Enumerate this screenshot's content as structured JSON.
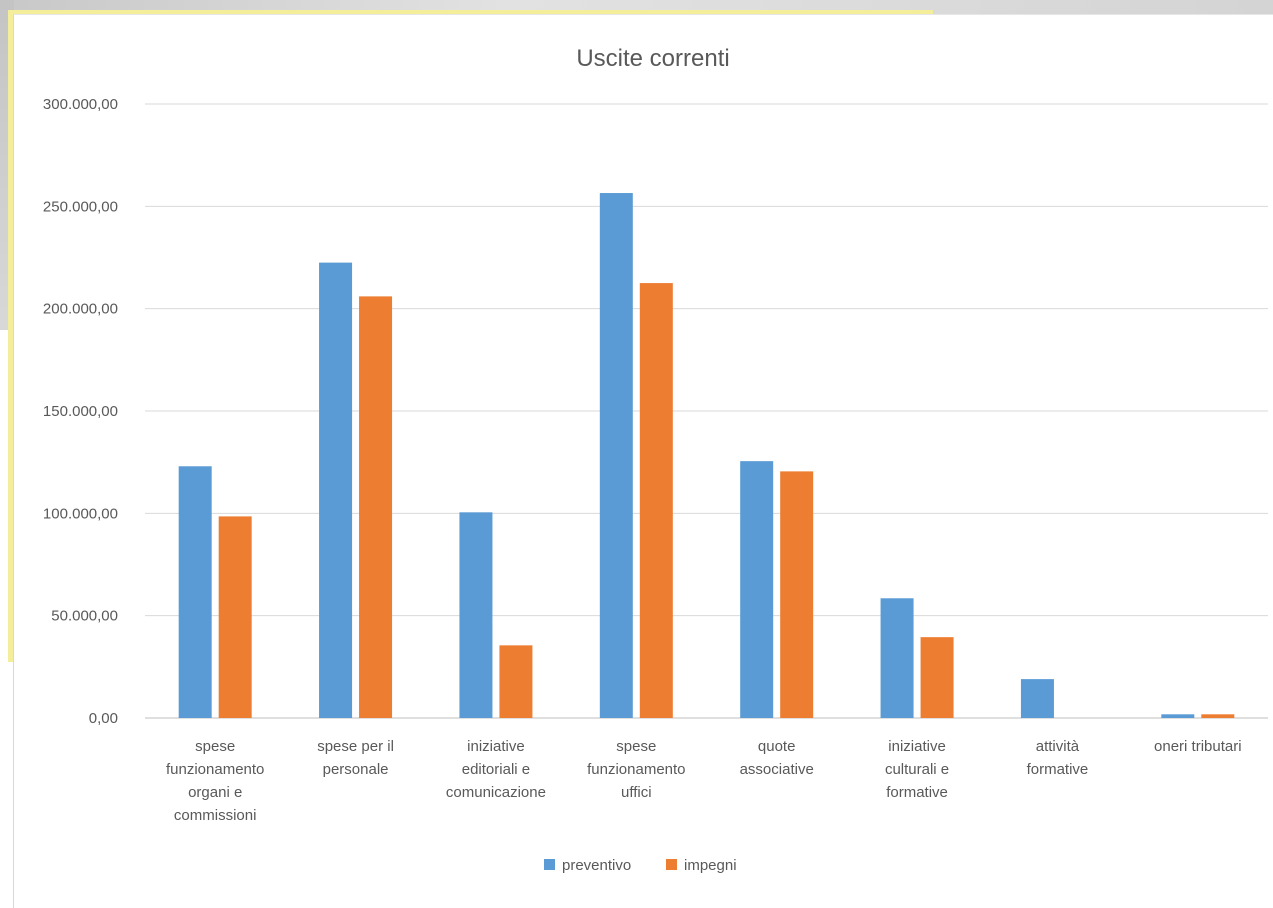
{
  "chart_data": {
    "type": "bar",
    "title": "Uscite correnti",
    "xlabel": "",
    "ylabel": "",
    "ylim": [
      0,
      300000
    ],
    "y_ticks": [
      "0,00",
      "50.000,00",
      "100.000,00",
      "150.000,00",
      "200.000,00",
      "250.000,00",
      "300.000,00"
    ],
    "categories": [
      [
        "spese",
        "funzionamento",
        "organi e",
        "commissioni"
      ],
      [
        "spese per il",
        "personale"
      ],
      [
        "iniziative",
        "editoriali e",
        "comunicazione"
      ],
      [
        "spese",
        "funzionamento",
        "uffici"
      ],
      [
        "quote",
        "associative"
      ],
      [
        "iniziative",
        "culturali e",
        "formative"
      ],
      [
        "attività",
        "formative"
      ],
      [
        "oneri tributari"
      ]
    ],
    "series": [
      {
        "name": "preventivo",
        "color": "#5b9bd5",
        "values": [
          123000,
          222500,
          100500,
          256500,
          125500,
          58500,
          19000,
          1800
        ]
      },
      {
        "name": "impegni",
        "color": "#ed7d31",
        "values": [
          98500,
          206000,
          35500,
          212500,
          120500,
          39500,
          0,
          1800
        ]
      }
    ],
    "grid": true,
    "legend": "bottom"
  }
}
